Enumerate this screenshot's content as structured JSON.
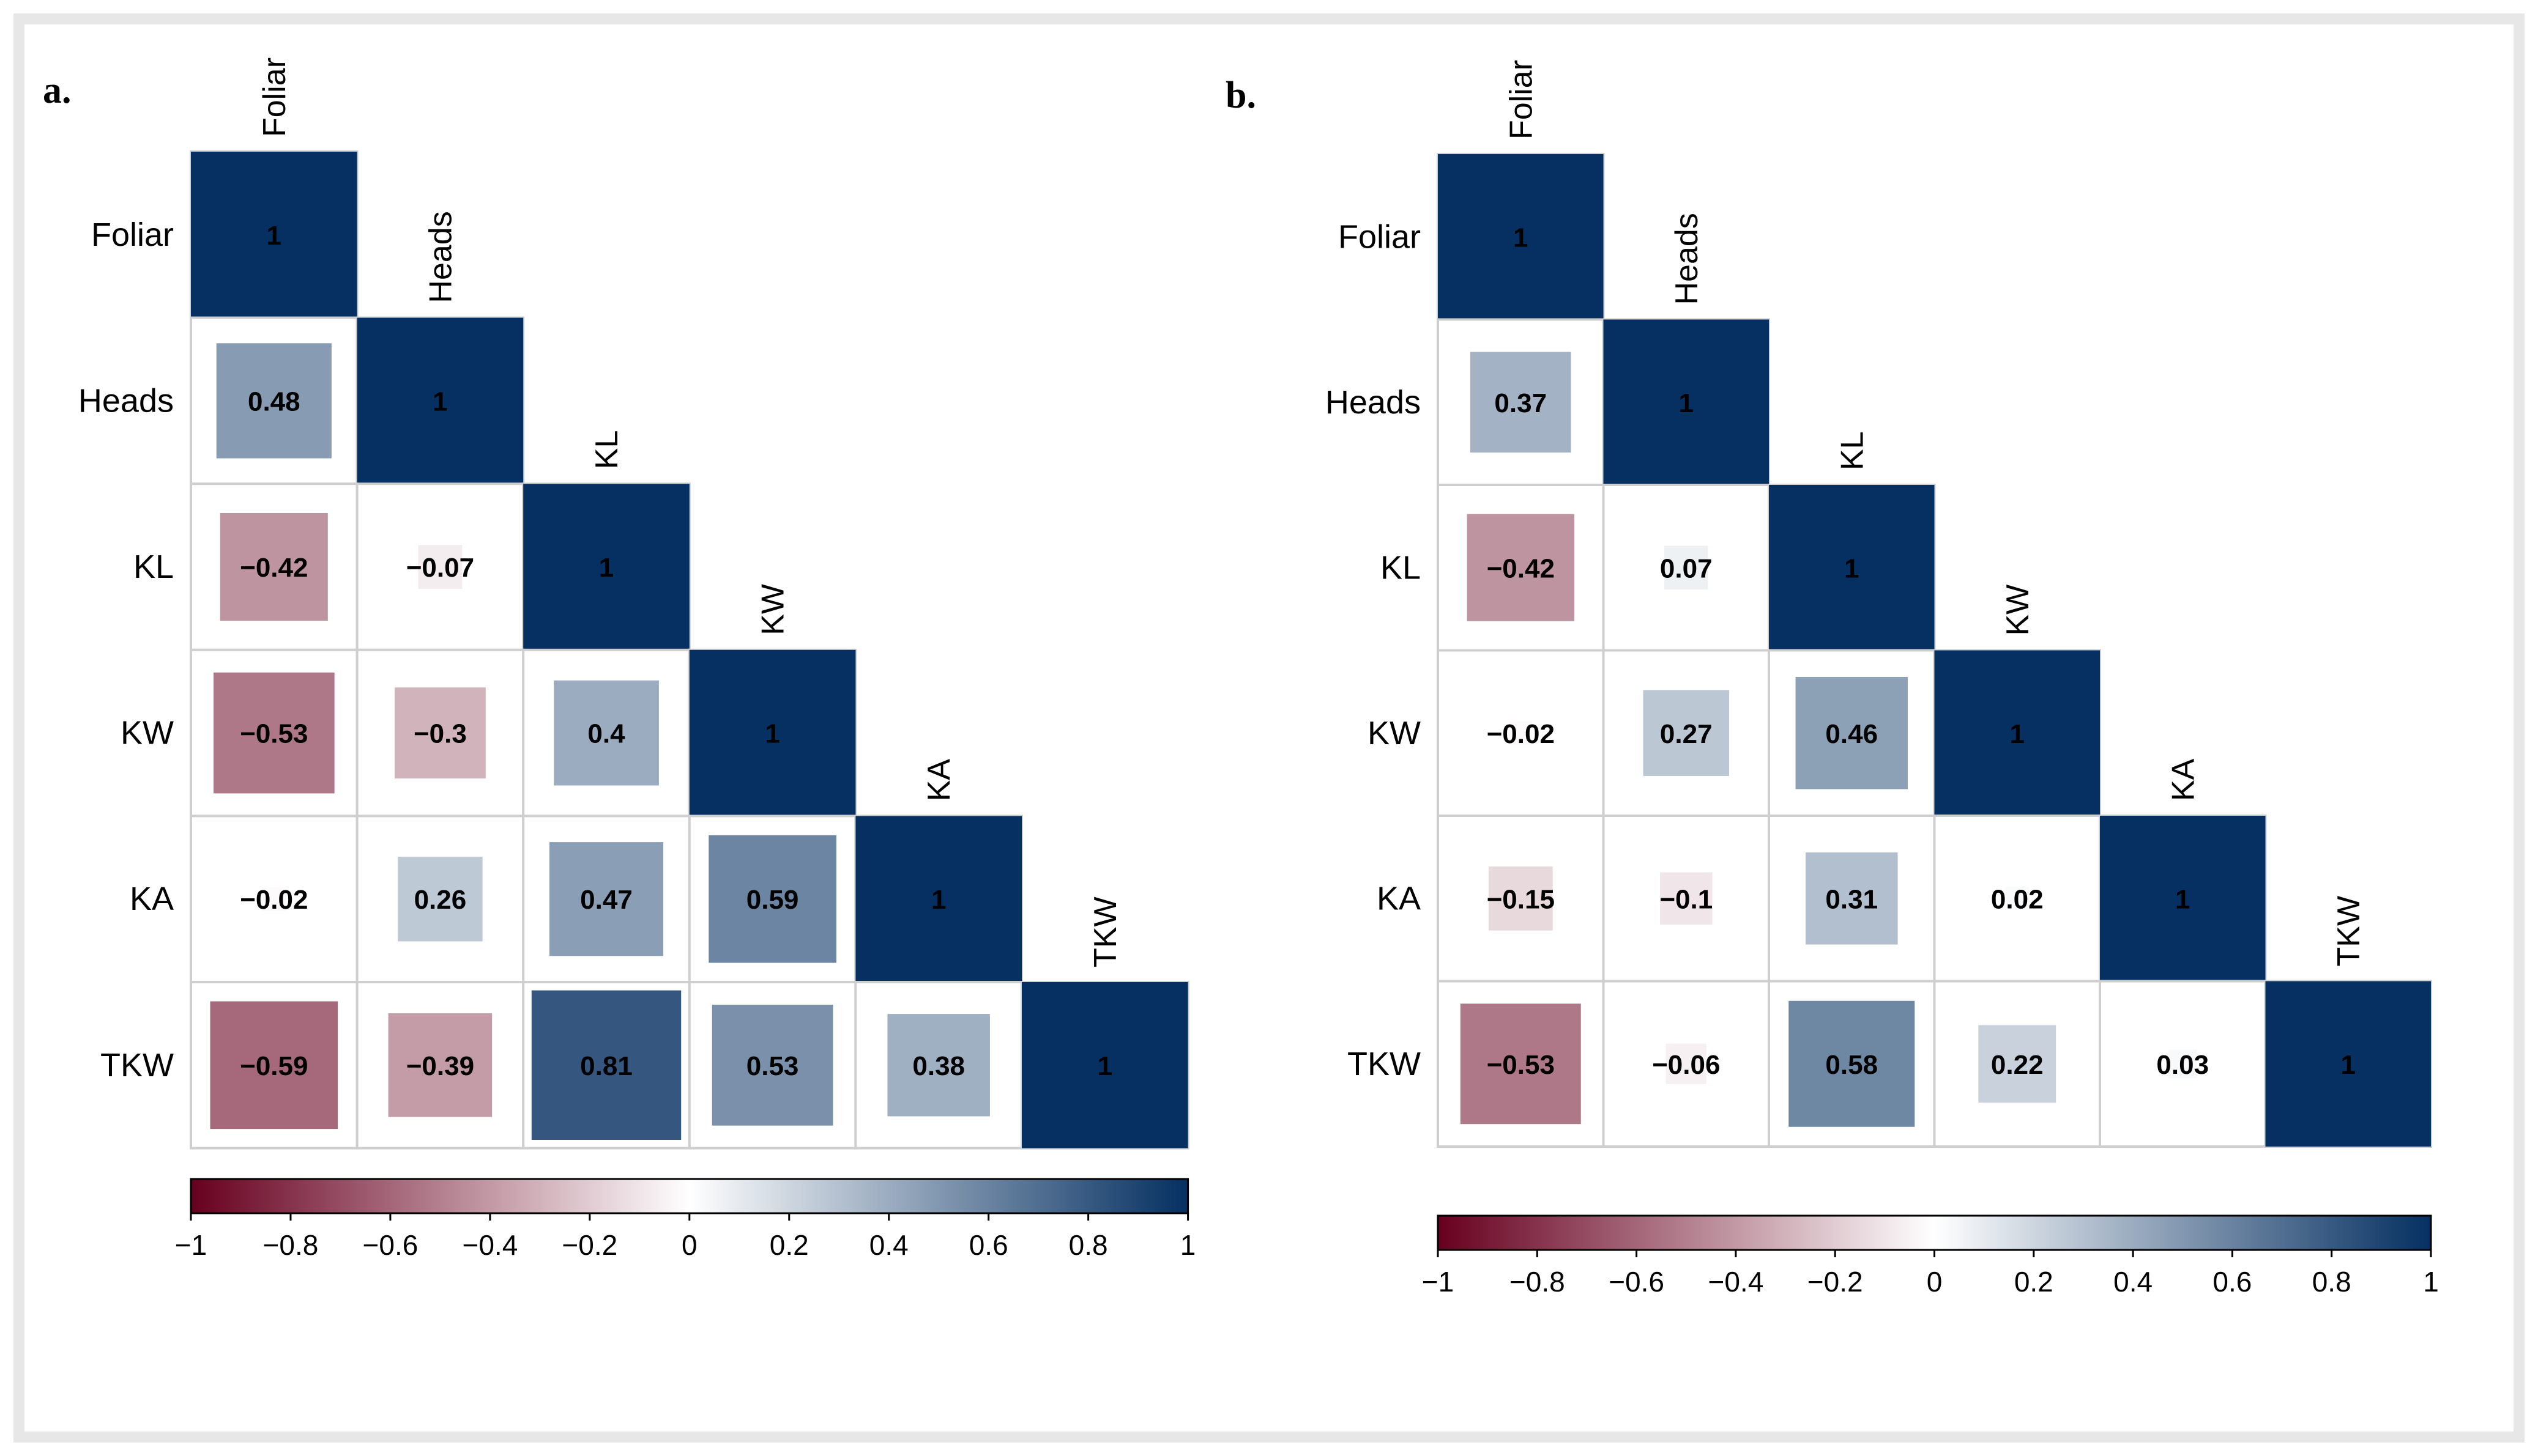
{
  "chart_data": [
    {
      "type": "heatmap",
      "panel_label": "a.",
      "variables": [
        "Foliar",
        "Heads",
        "KL",
        "KW",
        "KA",
        "TKW"
      ],
      "matrix": [
        [
          1,
          null,
          null,
          null,
          null,
          null
        ],
        [
          0.48,
          1,
          null,
          null,
          null,
          null
        ],
        [
          -0.42,
          -0.07,
          1,
          null,
          null,
          null
        ],
        [
          -0.53,
          -0.3,
          0.4,
          1,
          null,
          null
        ],
        [
          -0.02,
          0.26,
          0.47,
          0.59,
          1,
          null
        ],
        [
          -0.59,
          -0.39,
          0.81,
          0.53,
          0.38,
          1
        ]
      ],
      "colorbar": {
        "range": [
          -1,
          1
        ],
        "ticks": [
          -1,
          -0.8,
          -0.6,
          -0.4,
          -0.2,
          0,
          0.2,
          0.4,
          0.6,
          0.8,
          1
        ],
        "tick_labels": [
          "−1",
          "−0.8",
          "−0.6",
          "−0.4",
          "−0.2",
          "0",
          "0.2",
          "0.4",
          "0.6",
          "0.8",
          "1"
        ]
      }
    },
    {
      "type": "heatmap",
      "panel_label": "b.",
      "variables": [
        "Foliar",
        "Heads",
        "KL",
        "KW",
        "KA",
        "TKW"
      ],
      "matrix": [
        [
          1,
          null,
          null,
          null,
          null,
          null
        ],
        [
          0.37,
          1,
          null,
          null,
          null,
          null
        ],
        [
          -0.42,
          0.07,
          1,
          null,
          null,
          null
        ],
        [
          -0.02,
          0.27,
          0.46,
          1,
          null,
          null
        ],
        [
          -0.15,
          -0.1,
          0.31,
          0.02,
          1,
          null
        ],
        [
          -0.53,
          -0.06,
          0.58,
          0.22,
          0.03,
          1
        ]
      ],
      "colorbar": {
        "range": [
          -1,
          1
        ],
        "ticks": [
          -1,
          -0.8,
          -0.6,
          -0.4,
          -0.2,
          0,
          0.2,
          0.4,
          0.6,
          0.8,
          1
        ],
        "tick_labels": [
          "−1",
          "−0.8",
          "−0.6",
          "−0.4",
          "−0.2",
          "0",
          "0.2",
          "0.4",
          "0.6",
          "0.8",
          "1"
        ]
      }
    }
  ],
  "colors": {
    "negative": "#67001f",
    "neutral": "#ffffff",
    "positive": "#053061",
    "grid": "#cfcfcf"
  }
}
